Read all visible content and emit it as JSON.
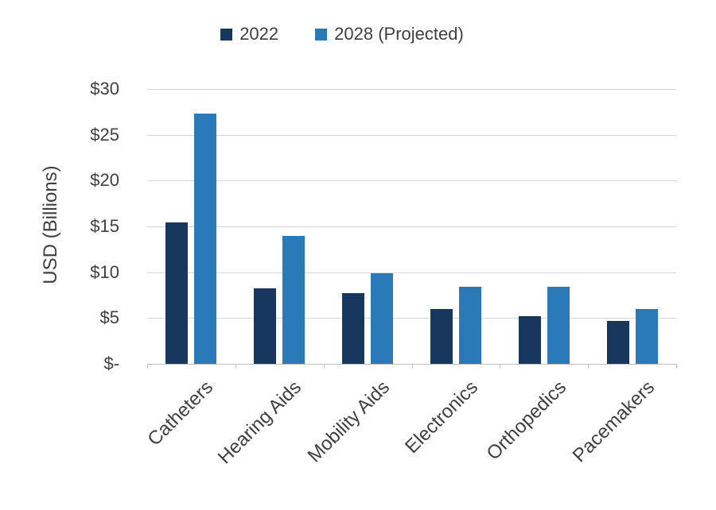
{
  "colors": {
    "series_2022": "#17375e",
    "series_2028": "#2a7ab9",
    "gridline": "#d6d6d6",
    "axis_line": "#bfbfbf",
    "axis_text": "#404040"
  },
  "chart_data": {
    "type": "bar",
    "title": "",
    "categories": [
      "Catheters",
      "Hearing Aids",
      "Mobility Aids",
      "Electronics",
      "Orthopedics",
      "Pacemakers"
    ],
    "series": [
      {
        "name": "2022",
        "color": "#17375e",
        "values": [
          15.4,
          8.2,
          7.7,
          6.0,
          5.2,
          4.7
        ]
      },
      {
        "name": "2028 (Projected)",
        "color": "#2a7ab9",
        "values": [
          27.3,
          14.0,
          9.9,
          8.4,
          8.4,
          6.0
        ]
      }
    ],
    "xlabel": "",
    "ylabel": "USD (Billions)",
    "ylim": [
      0,
      30
    ],
    "ytick_step": 5,
    "ytick_labels": [
      "$-",
      "$5",
      "$10",
      "$15",
      "$20",
      "$25",
      "$30"
    ],
    "grid": true,
    "legend_position": "top"
  }
}
